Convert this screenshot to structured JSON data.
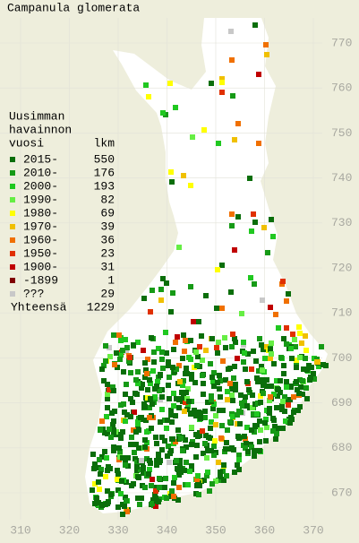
{
  "title": "Campanula glomerata",
  "legend": {
    "heading": [
      "Uusimman",
      "havainnon"
    ],
    "year_header": "vuosi",
    "count_header": "lkm",
    "items": [
      {
        "label": "2015-",
        "count": 550,
        "color": "#0a6e0a"
      },
      {
        "label": "2010-",
        "count": 176,
        "color": "#169a16"
      },
      {
        "label": "2000-",
        "count": 193,
        "color": "#20c820"
      },
      {
        "label": "1990-",
        "count": 82,
        "color": "#66ee44"
      },
      {
        "label": "1980-",
        "count": 69,
        "color": "#ffff00"
      },
      {
        "label": "1970-",
        "count": 39,
        "color": "#f0c000"
      },
      {
        "label": "1960-",
        "count": 36,
        "color": "#f07000"
      },
      {
        "label": "1950-",
        "count": 23,
        "color": "#e03000"
      },
      {
        "label": "1900-",
        "count": 31,
        "color": "#c00000"
      },
      {
        "label": "-1899",
        "count": 1,
        "color": "#800000"
      },
      {
        "label": "???",
        "count": 29,
        "color": "#c8c8c8"
      }
    ],
    "total_label": "Yhteensä",
    "total": 1229
  },
  "grid": {
    "north": [
      770,
      760,
      750,
      740,
      730,
      720,
      710,
      700,
      690,
      680,
      670
    ],
    "east": [
      310,
      320,
      330,
      340,
      350,
      360,
      370
    ]
  }
}
